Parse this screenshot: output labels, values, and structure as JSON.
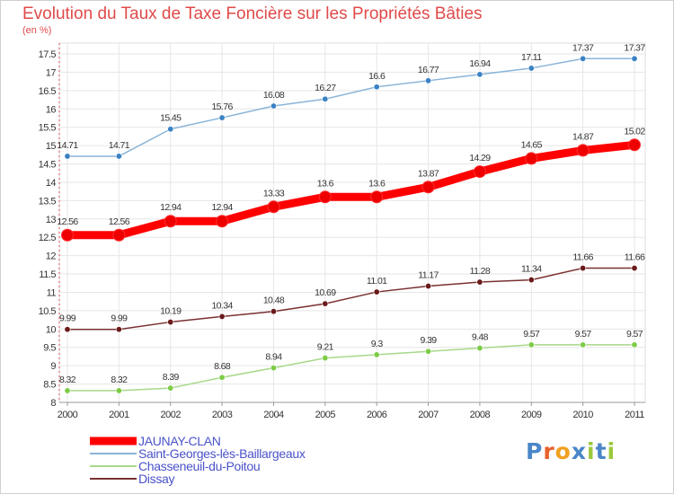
{
  "title": "Evolution du Taux de Taxe Foncière sur les Propriétés Bâties",
  "subtitle": "(en %)",
  "logo": {
    "text": "Proxiti",
    "letter_colors": [
      "#4a86c8",
      "#e8612c",
      "#f0a020",
      "#4a86c8",
      "#9cc83c",
      "#4a86c8",
      "#9cc83c"
    ]
  },
  "chart_data": {
    "type": "line",
    "title": "Evolution du Taux de Taxe Foncière sur les Propriétés Bâties",
    "ylabel": "(en %)",
    "x": [
      "2000",
      "2001",
      "2002",
      "2003",
      "2004",
      "2005",
      "2006",
      "2007",
      "2008",
      "2009",
      "2010",
      "2011"
    ],
    "ylim": [
      8,
      17.5
    ],
    "yticks": [
      "8",
      "8.5",
      "9",
      "9.5",
      "10",
      "10.5",
      "11",
      "11.5",
      "12",
      "12.5",
      "13",
      "13.5",
      "14",
      "14.5",
      "15",
      "15.5",
      "16",
      "16.5",
      "17",
      "17.5"
    ],
    "grid": true,
    "legend_position": "bottom-left",
    "series": [
      {
        "name": "JAUNAY-CLAN",
        "color": "#ff0000",
        "marker": "#ee0000",
        "values": [
          12.56,
          12.56,
          12.94,
          12.94,
          13.33,
          13.6,
          13.6,
          13.87,
          14.29,
          14.65,
          14.87,
          15.02
        ],
        "labels": [
          "12.56",
          "12.56",
          "12.94",
          "12.94",
          "13.33",
          "13.6",
          "13.6",
          "13.87",
          "14.29",
          "14.65",
          "14.87",
          "15.02"
        ]
      },
      {
        "name": "Saint-Georges-lès-Baillargeaux",
        "color": "#8ab4d8",
        "marker": "#3a82c4",
        "values": [
          14.71,
          14.71,
          15.45,
          15.76,
          16.08,
          16.27,
          16.6,
          16.77,
          16.94,
          17.11,
          17.37,
          17.37
        ],
        "labels": [
          "14.71",
          "14.71",
          "15.45",
          "15.76",
          "16.08",
          "16.27",
          "16.6",
          "16.77",
          "16.94",
          "17.11",
          "17.37",
          "17.37"
        ]
      },
      {
        "name": "Chasseneuil-du-Poitou",
        "color": "#a8d88a",
        "marker": "#7ccc46",
        "values": [
          8.32,
          8.32,
          8.39,
          8.68,
          8.94,
          9.21,
          9.3,
          9.39,
          9.48,
          9.57,
          9.57,
          9.57
        ],
        "labels": [
          "8.32",
          "8.32",
          "8.39",
          "8.68",
          "8.94",
          "9.21",
          "9.3",
          "9.39",
          "9.48",
          "9.57",
          "9.57",
          "9.57"
        ]
      },
      {
        "name": "Dissay",
        "color": "#7a3030",
        "marker": "#6a1a1a",
        "values": [
          9.99,
          9.99,
          10.19,
          10.34,
          10.48,
          10.69,
          11.01,
          11.17,
          11.28,
          11.34,
          11.66,
          11.66
        ],
        "labels": [
          "9.99",
          "9.99",
          "10.19",
          "10.34",
          "10.48",
          "10.69",
          "11.01",
          "11.17",
          "11.28",
          "11.34",
          "11.66",
          "11.66"
        ]
      }
    ]
  }
}
